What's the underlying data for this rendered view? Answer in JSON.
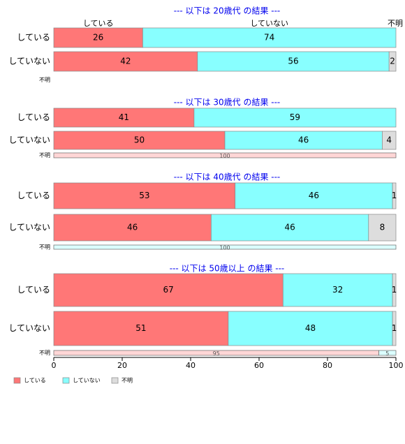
{
  "chart_data": {
    "type": "bar",
    "orientation": "horizontal",
    "stacked": true,
    "percent": true,
    "xlim": [
      0,
      100
    ],
    "x_ticks": [
      "0",
      "20",
      "40",
      "60",
      "80",
      "100"
    ],
    "series_names": [
      "している",
      "していない",
      "不明"
    ],
    "colors": [
      "#ff7777",
      "#88ffff",
      "#dddddd"
    ],
    "top_labels": [
      "している",
      "していない",
      "不明"
    ],
    "legend": {
      "position": "bottom-left",
      "entries": [
        "している",
        "していない",
        "不明"
      ]
    },
    "panels": [
      {
        "title": "--- 以下は 20歳代 の結果 ---",
        "rows": [
          {
            "label": "している",
            "values": [
              26,
              74,
              0
            ],
            "value_labels": [
              "26",
              "74",
              ""
            ]
          },
          {
            "label": "していない",
            "values": [
              42,
              56,
              2
            ],
            "value_labels": [
              "42",
              "56",
              "2"
            ]
          },
          {
            "label": "不明",
            "values": [],
            "value_labels": []
          }
        ]
      },
      {
        "title": "--- 以下は 30歳代 の結果 ---",
        "rows": [
          {
            "label": "している",
            "values": [
              41,
              59,
              0
            ],
            "value_labels": [
              "41",
              "59",
              ""
            ]
          },
          {
            "label": "していない",
            "values": [
              50,
              46,
              4
            ],
            "value_labels": [
              "50",
              "46",
              "4"
            ]
          },
          {
            "label": "不明",
            "values": [
              100,
              0,
              0
            ],
            "value_labels": [
              "100",
              "",
              ""
            ]
          }
        ]
      },
      {
        "title": "--- 以下は 40歳代 の結果 ---",
        "rows": [
          {
            "label": "している",
            "values": [
              53,
              46,
              1
            ],
            "value_labels": [
              "53",
              "46",
              "1"
            ]
          },
          {
            "label": "していない",
            "values": [
              46,
              46,
              8
            ],
            "value_labels": [
              "46",
              "46",
              "8"
            ]
          },
          {
            "label": "不明",
            "values": [
              0,
              100,
              0
            ],
            "value_labels": [
              "",
              "100",
              ""
            ]
          }
        ]
      },
      {
        "title": "--- 以下は 50歳以上 の結果 ---",
        "rows": [
          {
            "label": "している",
            "values": [
              67,
              32,
              1
            ],
            "value_labels": [
              "67",
              "32",
              "1"
            ]
          },
          {
            "label": "していない",
            "values": [
              51,
              48,
              1
            ],
            "value_labels": [
              "51",
              "48",
              "1"
            ]
          },
          {
            "label": "不明",
            "values": [
              95,
              5,
              0
            ],
            "value_labels": [
              "95",
              "5",
              ""
            ]
          }
        ]
      }
    ]
  }
}
